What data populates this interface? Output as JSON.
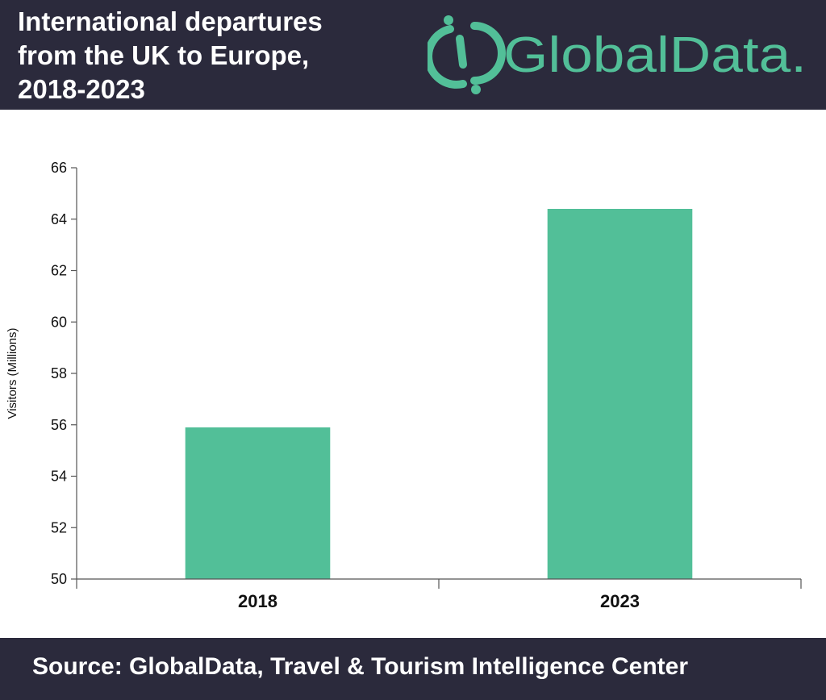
{
  "header": {
    "title_lines": [
      "International departures",
      "from the UK to Europe,",
      "2018-2023"
    ],
    "logo_text": "GlobalData."
  },
  "footer": {
    "source": "Source:  GlobalData, Travel & Tourism Intelligence Center"
  },
  "colors": {
    "header_bg": "#2b2a3c",
    "bar": "#52bf98",
    "brand": "#52bf98",
    "axis": "#555555",
    "text": "#111111"
  },
  "chart_data": {
    "type": "bar",
    "categories": [
      "2018",
      "2023"
    ],
    "values": [
      55.9,
      64.4
    ],
    "title": "International departures from the UK to Europe, 2018-2023",
    "xlabel": "",
    "ylabel": "Visitors (Millions)",
    "ylim": [
      50,
      66
    ],
    "yticks": [
      50,
      52,
      54,
      56,
      58,
      60,
      62,
      64,
      66
    ],
    "grid": false,
    "legend": "none"
  }
}
